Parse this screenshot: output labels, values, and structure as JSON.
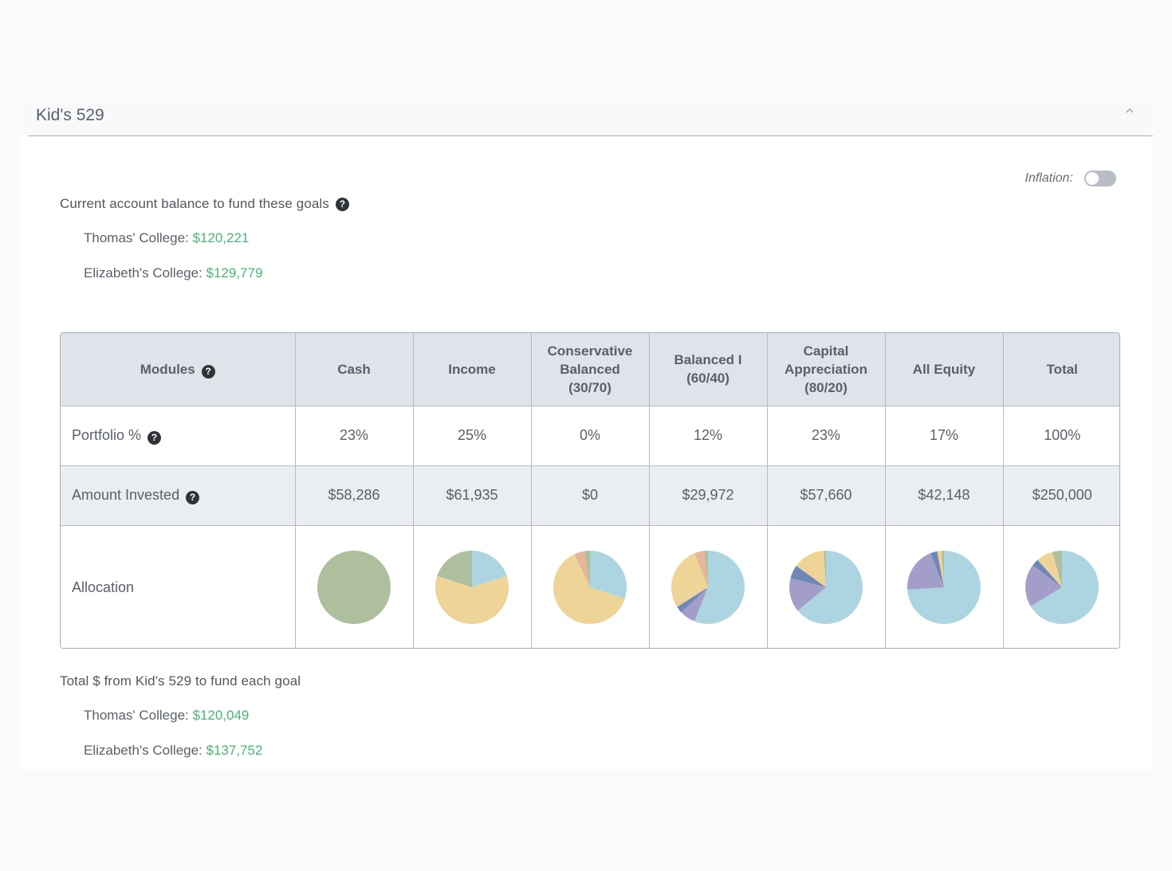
{
  "header": {
    "title": "Kid's 529",
    "collapse_icon": "chevron-up-icon"
  },
  "inflation": {
    "label": "Inflation:",
    "enabled": false
  },
  "current_balance": {
    "title": "Current account balance to fund these goals",
    "goals": [
      {
        "label": "Thomas' College:",
        "amount": "$120,221"
      },
      {
        "label": "Elizabeth's College:",
        "amount": "$129,779"
      }
    ]
  },
  "table": {
    "columns": [
      "Modules",
      "Cash",
      "Income",
      "Conservative Balanced (30/70)",
      "Balanced I (60/40)",
      "Capital Appreciation (80/20)",
      "All Equity",
      "Total"
    ],
    "column_lines": [
      [
        "Modules"
      ],
      [
        "Cash"
      ],
      [
        "Income"
      ],
      [
        "Conservative",
        "Balanced",
        "(30/70)"
      ],
      [
        "Balanced I",
        "(60/40)"
      ],
      [
        "Capital",
        "Appreciation",
        "(80/20)"
      ],
      [
        "All Equity"
      ],
      [
        "Total"
      ]
    ],
    "rows": {
      "portfolio": {
        "label": "Portfolio %",
        "values": [
          "23%",
          "25%",
          "0%",
          "12%",
          "23%",
          "17%",
          "100%"
        ]
      },
      "amount": {
        "label": "Amount Invested",
        "values": [
          "$58,286",
          "$61,935",
          "$0",
          "$29,972",
          "$57,660",
          "$42,148",
          "$250,000"
        ]
      },
      "allocation": {
        "label": "Allocation"
      }
    }
  },
  "colors": {
    "positive_amount": "#46b474",
    "header_bg": "#dfe3ea",
    "alt_row_bg": "#eaedf2",
    "slice_colors": {
      "green": "#adbf9d",
      "yellow": "#efd497",
      "light_blue": "#add5e1",
      "purple": "#a39ec9",
      "blue": "#6f88b9",
      "salmon": "#e7b59a"
    }
  },
  "chart_data": [
    {
      "type": "pie",
      "module": "Cash",
      "labels": [
        "green"
      ],
      "values": [
        100
      ]
    },
    {
      "type": "pie",
      "module": "Income",
      "labels": [
        "light_blue",
        "yellow",
        "green"
      ],
      "values": [
        20,
        60,
        20
      ]
    },
    {
      "type": "pie",
      "module": "Conservative Balanced (30/70)",
      "labels": [
        "light_blue",
        "yellow",
        "salmon",
        "green"
      ],
      "values": [
        30,
        63,
        4.5,
        2.5
      ]
    },
    {
      "type": "pie",
      "module": "Balanced I (60/40)",
      "labels": [
        "light_blue",
        "purple",
        "blue",
        "yellow",
        "salmon",
        "green"
      ],
      "values": [
        56,
        7,
        3,
        28,
        4.5,
        1.5
      ]
    },
    {
      "type": "pie",
      "module": "Capital Appreciation (80/20)",
      "labels": [
        "light_blue",
        "purple",
        "blue",
        "yellow",
        "green"
      ],
      "values": [
        64,
        15,
        6,
        14,
        1
      ]
    },
    {
      "type": "pie",
      "module": "All Equity",
      "labels": [
        "light_blue",
        "purple",
        "blue",
        "yellow",
        "green"
      ],
      "values": [
        74,
        20,
        3,
        2,
        1
      ]
    },
    {
      "type": "pie",
      "module": "Total",
      "labels": [
        "light_blue",
        "purple",
        "blue",
        "yellow",
        "green"
      ],
      "values": [
        63,
        18,
        3,
        7,
        4
      ]
    }
  ],
  "total_funding": {
    "title": "Total $ from Kid's 529 to fund each goal",
    "goals": [
      {
        "label": "Thomas' College:",
        "amount": "$120,049"
      },
      {
        "label": "Elizabeth's College:",
        "amount": "$137,752"
      }
    ]
  }
}
